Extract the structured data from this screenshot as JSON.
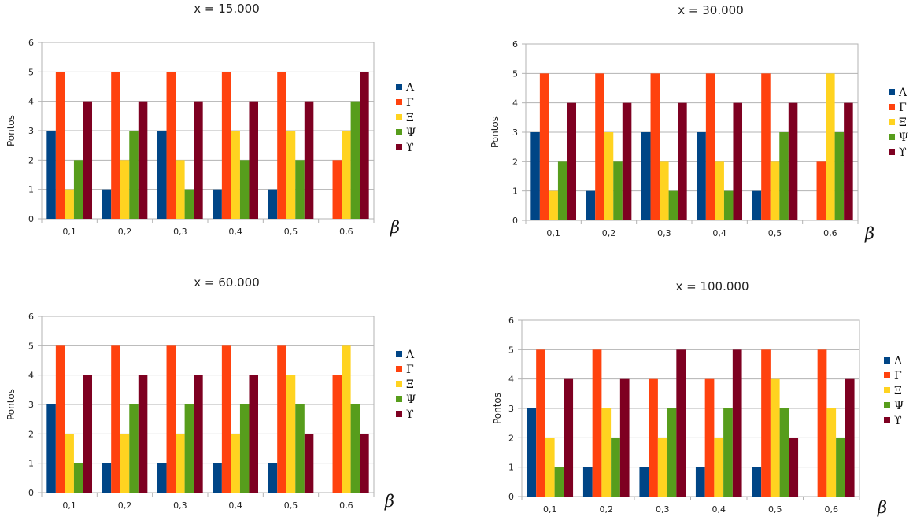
{
  "chart_data": [
    {
      "type": "bar",
      "title": "x = 15.000",
      "xlabel": "β",
      "ylabel": "Pontos",
      "ylim": [
        0,
        6
      ],
      "yticks": [
        "0",
        "1",
        "2",
        "3",
        "4",
        "5",
        "6"
      ],
      "grid": true,
      "legend_position": "right",
      "categories": [
        "0,1",
        "0,2",
        "0,3",
        "0,4",
        "0,5",
        "0,6"
      ],
      "series": [
        {
          "name": "Λ",
          "color": "#004586",
          "values": [
            3,
            1,
            3,
            1,
            1,
            0
          ]
        },
        {
          "name": "Γ",
          "color": "#ff420e",
          "values": [
            5,
            5,
            5,
            5,
            5,
            2
          ]
        },
        {
          "name": "Ξ",
          "color": "#ffd320",
          "values": [
            1,
            2,
            2,
            3,
            3,
            3
          ]
        },
        {
          "name": "Ψ",
          "color": "#579d1c",
          "values": [
            2,
            3,
            1,
            2,
            2,
            4
          ]
        },
        {
          "name": "ϒ",
          "color": "#7e0021",
          "values": [
            4,
            4,
            4,
            4,
            4,
            5
          ]
        }
      ]
    },
    {
      "type": "bar",
      "title": "x = 30.000",
      "xlabel": "β",
      "ylabel": "Pontos",
      "ylim": [
        0,
        6
      ],
      "yticks": [
        "0",
        "1",
        "2",
        "3",
        "4",
        "5",
        "6"
      ],
      "grid": true,
      "legend_position": "right",
      "categories": [
        "0,1",
        "0,2",
        "0,3",
        "0,4",
        "0,5",
        "0,6"
      ],
      "series": [
        {
          "name": "Λ",
          "color": "#004586",
          "values": [
            3,
            1,
            3,
            3,
            1,
            0
          ]
        },
        {
          "name": "Γ",
          "color": "#ff420e",
          "values": [
            5,
            5,
            5,
            5,
            5,
            2
          ]
        },
        {
          "name": "Ξ",
          "color": "#ffd320",
          "values": [
            1,
            3,
            2,
            2,
            2,
            5
          ]
        },
        {
          "name": "Ψ",
          "color": "#579d1c",
          "values": [
            2,
            2,
            1,
            1,
            3,
            3
          ]
        },
        {
          "name": "ϒ",
          "color": "#7e0021",
          "values": [
            4,
            4,
            4,
            4,
            4,
            4
          ]
        }
      ]
    },
    {
      "type": "bar",
      "title": "x = 60.000",
      "xlabel": "β",
      "ylabel": "Pontos",
      "ylim": [
        0,
        6
      ],
      "yticks": [
        "0",
        "1",
        "2",
        "3",
        "4",
        "5",
        "6"
      ],
      "grid": true,
      "legend_position": "right",
      "categories": [
        "0,1",
        "0,2",
        "0,3",
        "0,4",
        "0,5",
        "0,6"
      ],
      "series": [
        {
          "name": "Λ",
          "color": "#004586",
          "values": [
            3,
            1,
            1,
            1,
            1,
            0
          ]
        },
        {
          "name": "Γ",
          "color": "#ff420e",
          "values": [
            5,
            5,
            5,
            5,
            5,
            4
          ]
        },
        {
          "name": "Ξ",
          "color": "#ffd320",
          "values": [
            2,
            2,
            2,
            2,
            4,
            5
          ]
        },
        {
          "name": "Ψ",
          "color": "#579d1c",
          "values": [
            1,
            3,
            3,
            3,
            3,
            3
          ]
        },
        {
          "name": "ϒ",
          "color": "#7e0021",
          "values": [
            4,
            4,
            4,
            4,
            2,
            2
          ]
        }
      ]
    },
    {
      "type": "bar",
      "title": "x = 100.000",
      "xlabel": "β",
      "ylabel": "Pontos",
      "ylim": [
        0,
        6
      ],
      "yticks": [
        "0",
        "1",
        "2",
        "3",
        "4",
        "5",
        "6"
      ],
      "grid": true,
      "legend_position": "right",
      "categories": [
        "0,1",
        "0,2",
        "0,3",
        "0,4",
        "0,5",
        "0,6"
      ],
      "series": [
        {
          "name": "Λ",
          "color": "#004586",
          "values": [
            3,
            1,
            1,
            1,
            1,
            0
          ]
        },
        {
          "name": "Γ",
          "color": "#ff420e",
          "values": [
            5,
            5,
            4,
            4,
            5,
            5
          ]
        },
        {
          "name": "Ξ",
          "color": "#ffd320",
          "values": [
            2,
            3,
            2,
            2,
            4,
            3
          ]
        },
        {
          "name": "Ψ",
          "color": "#579d1c",
          "values": [
            1,
            2,
            3,
            3,
            3,
            2
          ]
        },
        {
          "name": "ϒ",
          "color": "#7e0021",
          "values": [
            4,
            4,
            5,
            5,
            2,
            4
          ]
        }
      ]
    }
  ]
}
